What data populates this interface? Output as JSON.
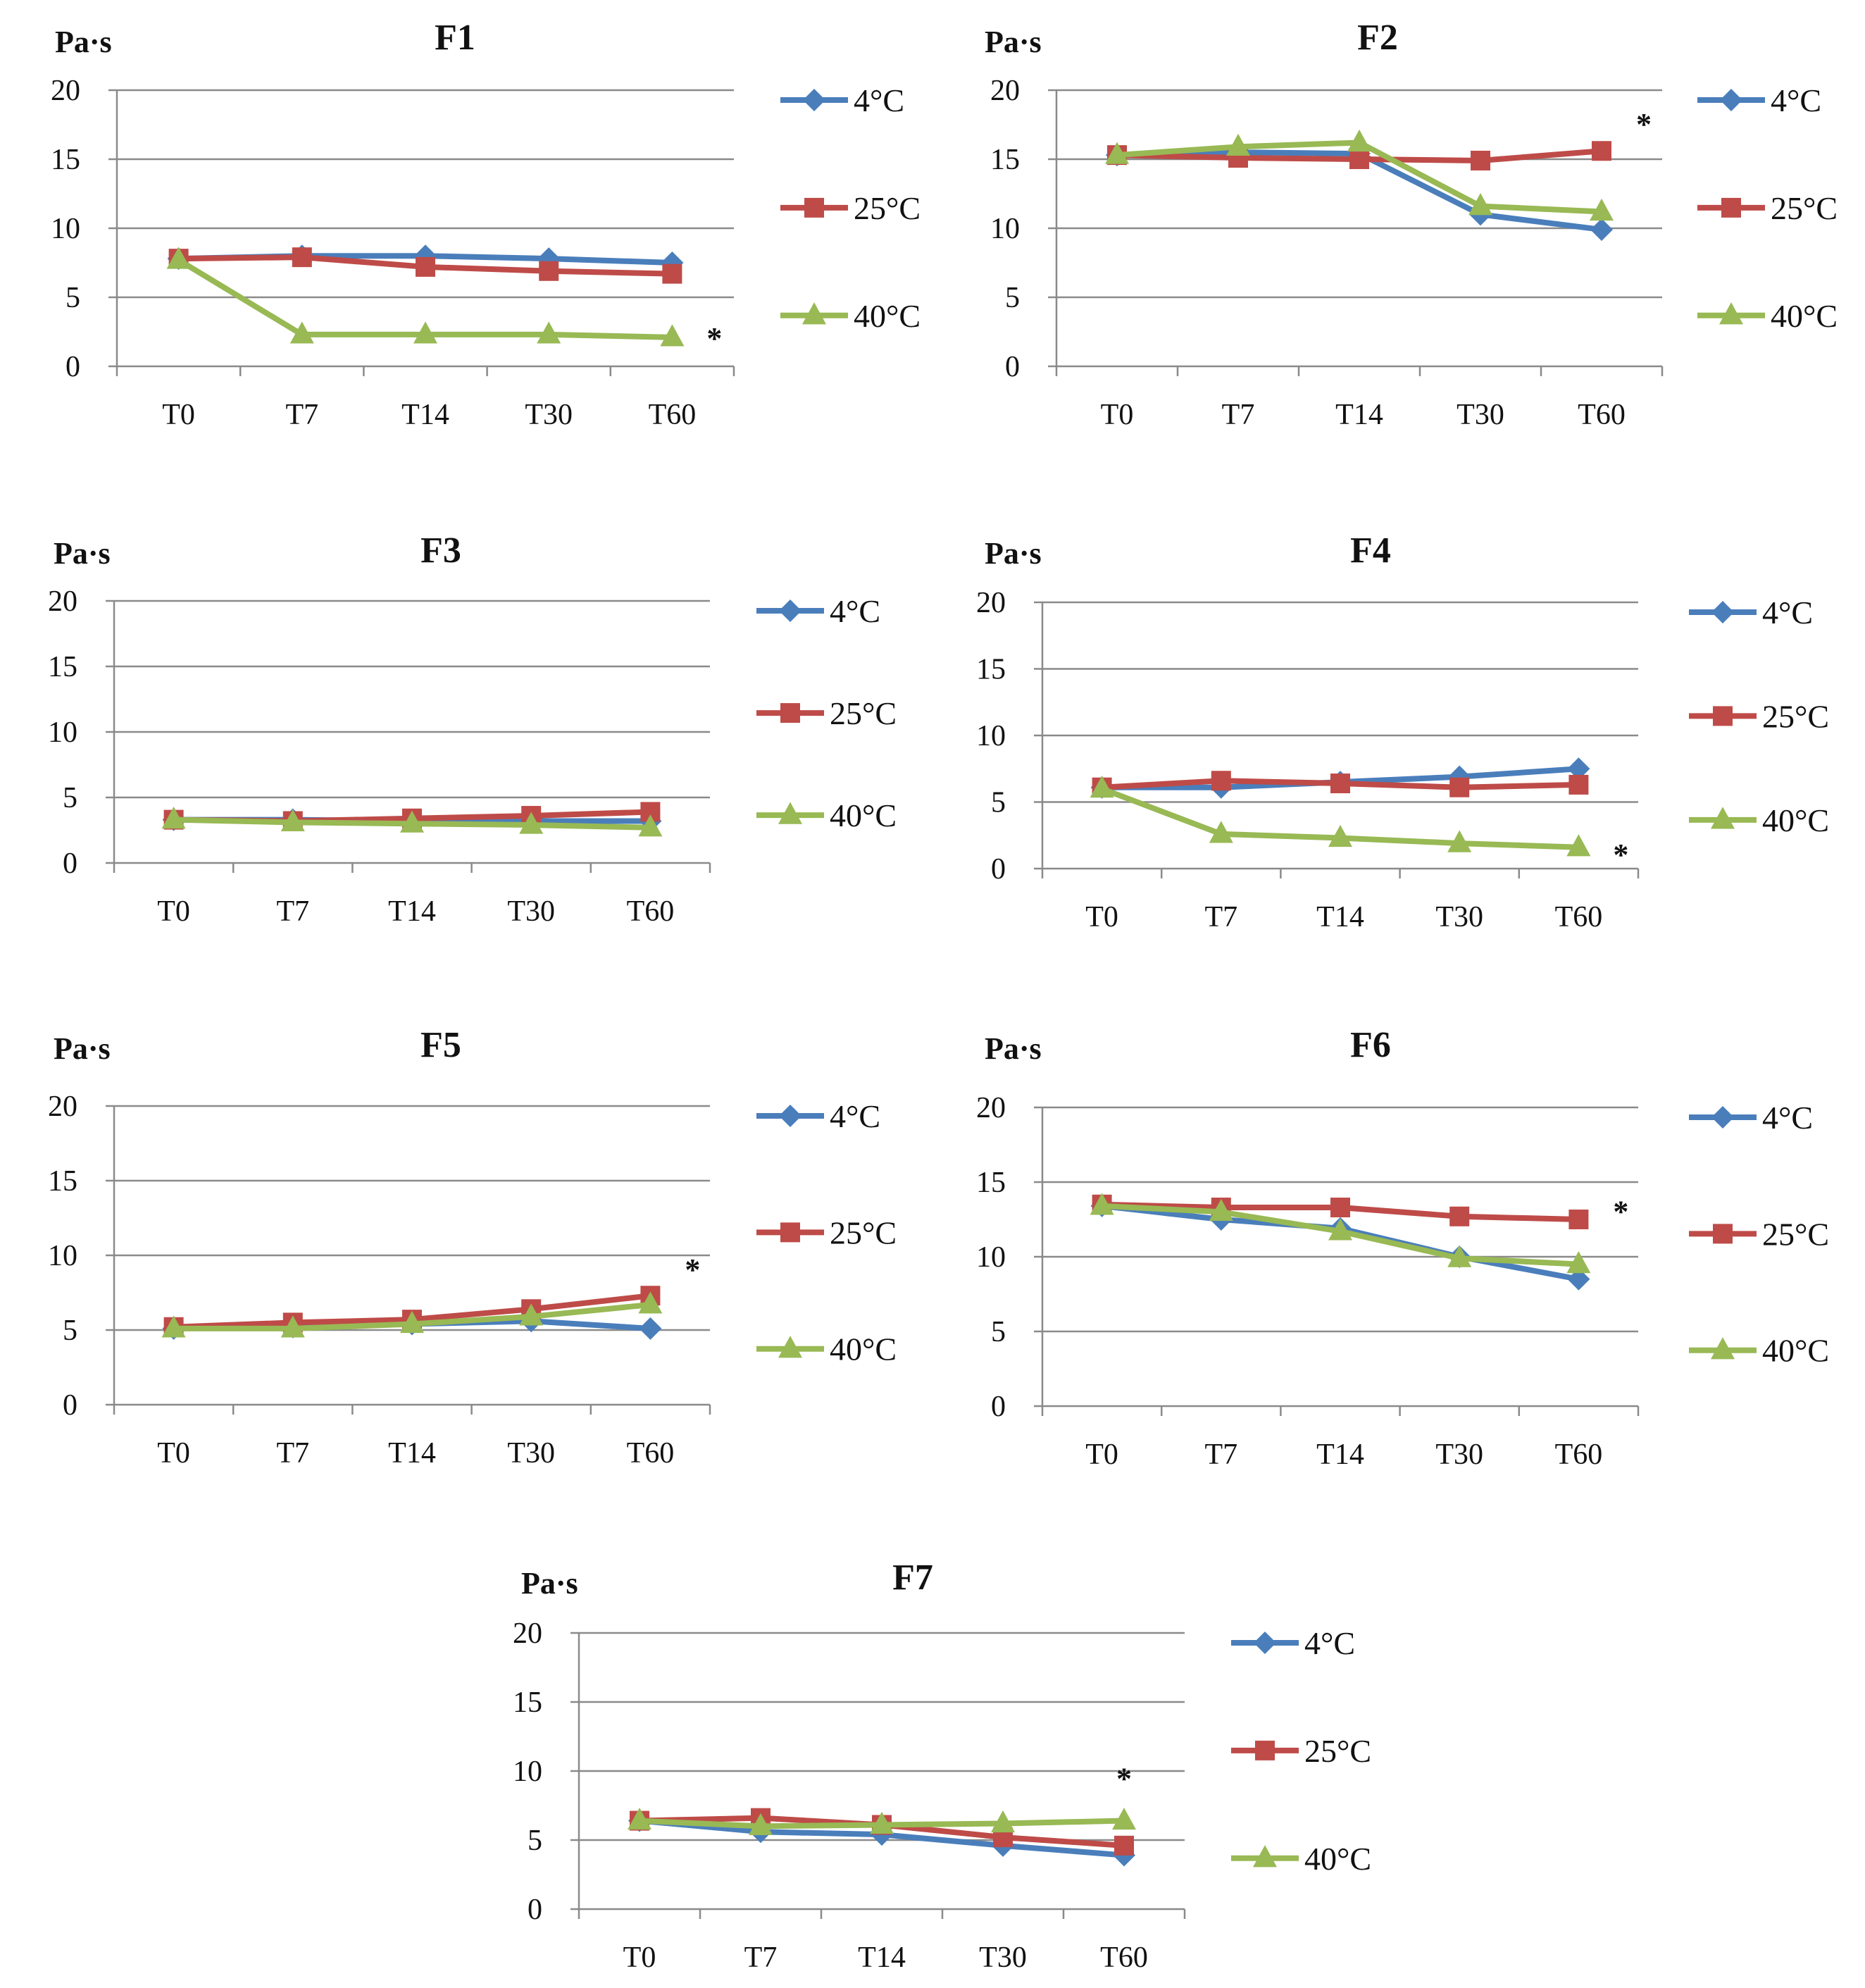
{
  "colors": {
    "4C": "#4a7ebb",
    "25C": "#be4b48",
    "40C": "#98b954",
    "grid": "#8a8a8a",
    "axis": "#8a8a8a"
  },
  "chart_data": [
    {
      "type": "line",
      "title": "F1",
      "ylabel": "Pa·s",
      "categories": [
        "T0",
        "T7",
        "T14",
        "T30",
        "T60"
      ],
      "yticks": [
        "0",
        "5",
        "10",
        "15",
        "20"
      ],
      "ylim": [
        0,
        20
      ],
      "series": [
        {
          "name": "4°C",
          "marker": "diamond",
          "values": [
            7.8,
            8.0,
            8.0,
            7.8,
            7.5
          ]
        },
        {
          "name": "25°C",
          "marker": "square",
          "values": [
            7.8,
            7.9,
            7.2,
            6.9,
            6.7
          ]
        },
        {
          "name": "40°C",
          "marker": "triangle",
          "values": [
            7.7,
            2.3,
            2.3,
            2.3,
            2.1
          ]
        }
      ],
      "annotation": {
        "text": "*",
        "category": "T60",
        "value": 2.0,
        "side": "right"
      }
    },
    {
      "type": "line",
      "title": "F2",
      "ylabel": "Pa·s",
      "categories": [
        "T0",
        "T7",
        "T14",
        "T30",
        "T60"
      ],
      "yticks": [
        "0",
        "5",
        "10",
        "15",
        "20"
      ],
      "ylim": [
        0,
        20
      ],
      "series": [
        {
          "name": "4°C",
          "marker": "diamond",
          "values": [
            15.3,
            15.5,
            15.4,
            11.0,
            9.9
          ]
        },
        {
          "name": "25°C",
          "marker": "square",
          "values": [
            15.3,
            15.1,
            15.0,
            14.9,
            15.6
          ]
        },
        {
          "name": "40°C",
          "marker": "triangle",
          "values": [
            15.3,
            15.9,
            16.2,
            11.6,
            11.2
          ]
        }
      ],
      "annotation": {
        "text": "*",
        "category": "T60",
        "value": 17.5,
        "side": "right"
      }
    },
    {
      "type": "line",
      "title": "F3",
      "ylabel": "Pa·s",
      "categories": [
        "T0",
        "T7",
        "T14",
        "T30",
        "T60"
      ],
      "yticks": [
        "0",
        "5",
        "10",
        "15",
        "20"
      ],
      "ylim": [
        0,
        20
      ],
      "series": [
        {
          "name": "4°C",
          "marker": "diamond",
          "values": [
            3.3,
            3.3,
            3.2,
            3.2,
            3.2
          ]
        },
        {
          "name": "25°C",
          "marker": "square",
          "values": [
            3.3,
            3.2,
            3.4,
            3.6,
            3.9
          ]
        },
        {
          "name": "40°C",
          "marker": "triangle",
          "values": [
            3.3,
            3.1,
            3.0,
            2.9,
            2.7
          ]
        }
      ],
      "annotation": null
    },
    {
      "type": "line",
      "title": "F4",
      "ylabel": "Pa·s",
      "categories": [
        "T0",
        "T7",
        "T14",
        "T30",
        "T60"
      ],
      "yticks": [
        "0",
        "5",
        "10",
        "15",
        "20"
      ],
      "ylim": [
        0,
        20
      ],
      "series": [
        {
          "name": "4°C",
          "marker": "diamond",
          "values": [
            6.1,
            6.1,
            6.5,
            6.9,
            7.5
          ]
        },
        {
          "name": "25°C",
          "marker": "square",
          "values": [
            6.1,
            6.6,
            6.4,
            6.1,
            6.3
          ]
        },
        {
          "name": "40°C",
          "marker": "triangle",
          "values": [
            6.0,
            2.6,
            2.3,
            1.9,
            1.6
          ]
        }
      ],
      "annotation": {
        "text": "*",
        "category": "T60",
        "value": 1.0,
        "side": "right"
      }
    },
    {
      "type": "line",
      "title": "F5",
      "ylabel": "Pa·s",
      "categories": [
        "T0",
        "T7",
        "T14",
        "T30",
        "T60"
      ],
      "yticks": [
        "0",
        "5",
        "10",
        "15",
        "20"
      ],
      "ylim": [
        0,
        20
      ],
      "series": [
        {
          "name": "4°C",
          "marker": "diamond",
          "values": [
            5.1,
            5.2,
            5.4,
            5.6,
            5.1
          ]
        },
        {
          "name": "25°C",
          "marker": "square",
          "values": [
            5.2,
            5.5,
            5.7,
            6.4,
            7.3
          ]
        },
        {
          "name": "40°C",
          "marker": "triangle",
          "values": [
            5.1,
            5.1,
            5.4,
            5.9,
            6.7
          ]
        }
      ],
      "annotation": {
        "text": "*",
        "category": "T60",
        "value": 9.0,
        "side": "right"
      }
    },
    {
      "type": "line",
      "title": "F6",
      "ylabel": "Pa·s",
      "categories": [
        "T0",
        "T7",
        "T14",
        "T30",
        "T60"
      ],
      "yticks": [
        "0",
        "5",
        "10",
        "15",
        "20"
      ],
      "ylim": [
        0,
        20
      ],
      "series": [
        {
          "name": "4°C",
          "marker": "diamond",
          "values": [
            13.4,
            12.5,
            11.9,
            10.0,
            8.5
          ]
        },
        {
          "name": "25°C",
          "marker": "square",
          "values": [
            13.5,
            13.3,
            13.3,
            12.7,
            12.5
          ]
        },
        {
          "name": "40°C",
          "marker": "triangle",
          "values": [
            13.4,
            13.0,
            11.7,
            9.9,
            9.5
          ]
        }
      ],
      "annotation": {
        "text": "*",
        "category": "T60",
        "value": 13.0,
        "side": "right"
      }
    },
    {
      "type": "line",
      "title": "F7",
      "ylabel": "Pa·s",
      "categories": [
        "T0",
        "T7",
        "T14",
        "T30",
        "T60"
      ],
      "yticks": [
        "0",
        "5",
        "10",
        "15",
        "20"
      ],
      "ylim": [
        0,
        20
      ],
      "series": [
        {
          "name": "4°C",
          "marker": "diamond",
          "values": [
            6.4,
            5.6,
            5.4,
            4.6,
            3.9
          ]
        },
        {
          "name": "25°C",
          "marker": "square",
          "values": [
            6.4,
            6.6,
            6.1,
            5.2,
            4.6
          ]
        },
        {
          "name": "40°C",
          "marker": "triangle",
          "values": [
            6.4,
            6.0,
            6.1,
            6.2,
            6.4
          ]
        }
      ],
      "annotation": {
        "text": "*",
        "category": "T60",
        "value": 8.7,
        "side": "above"
      }
    }
  ]
}
